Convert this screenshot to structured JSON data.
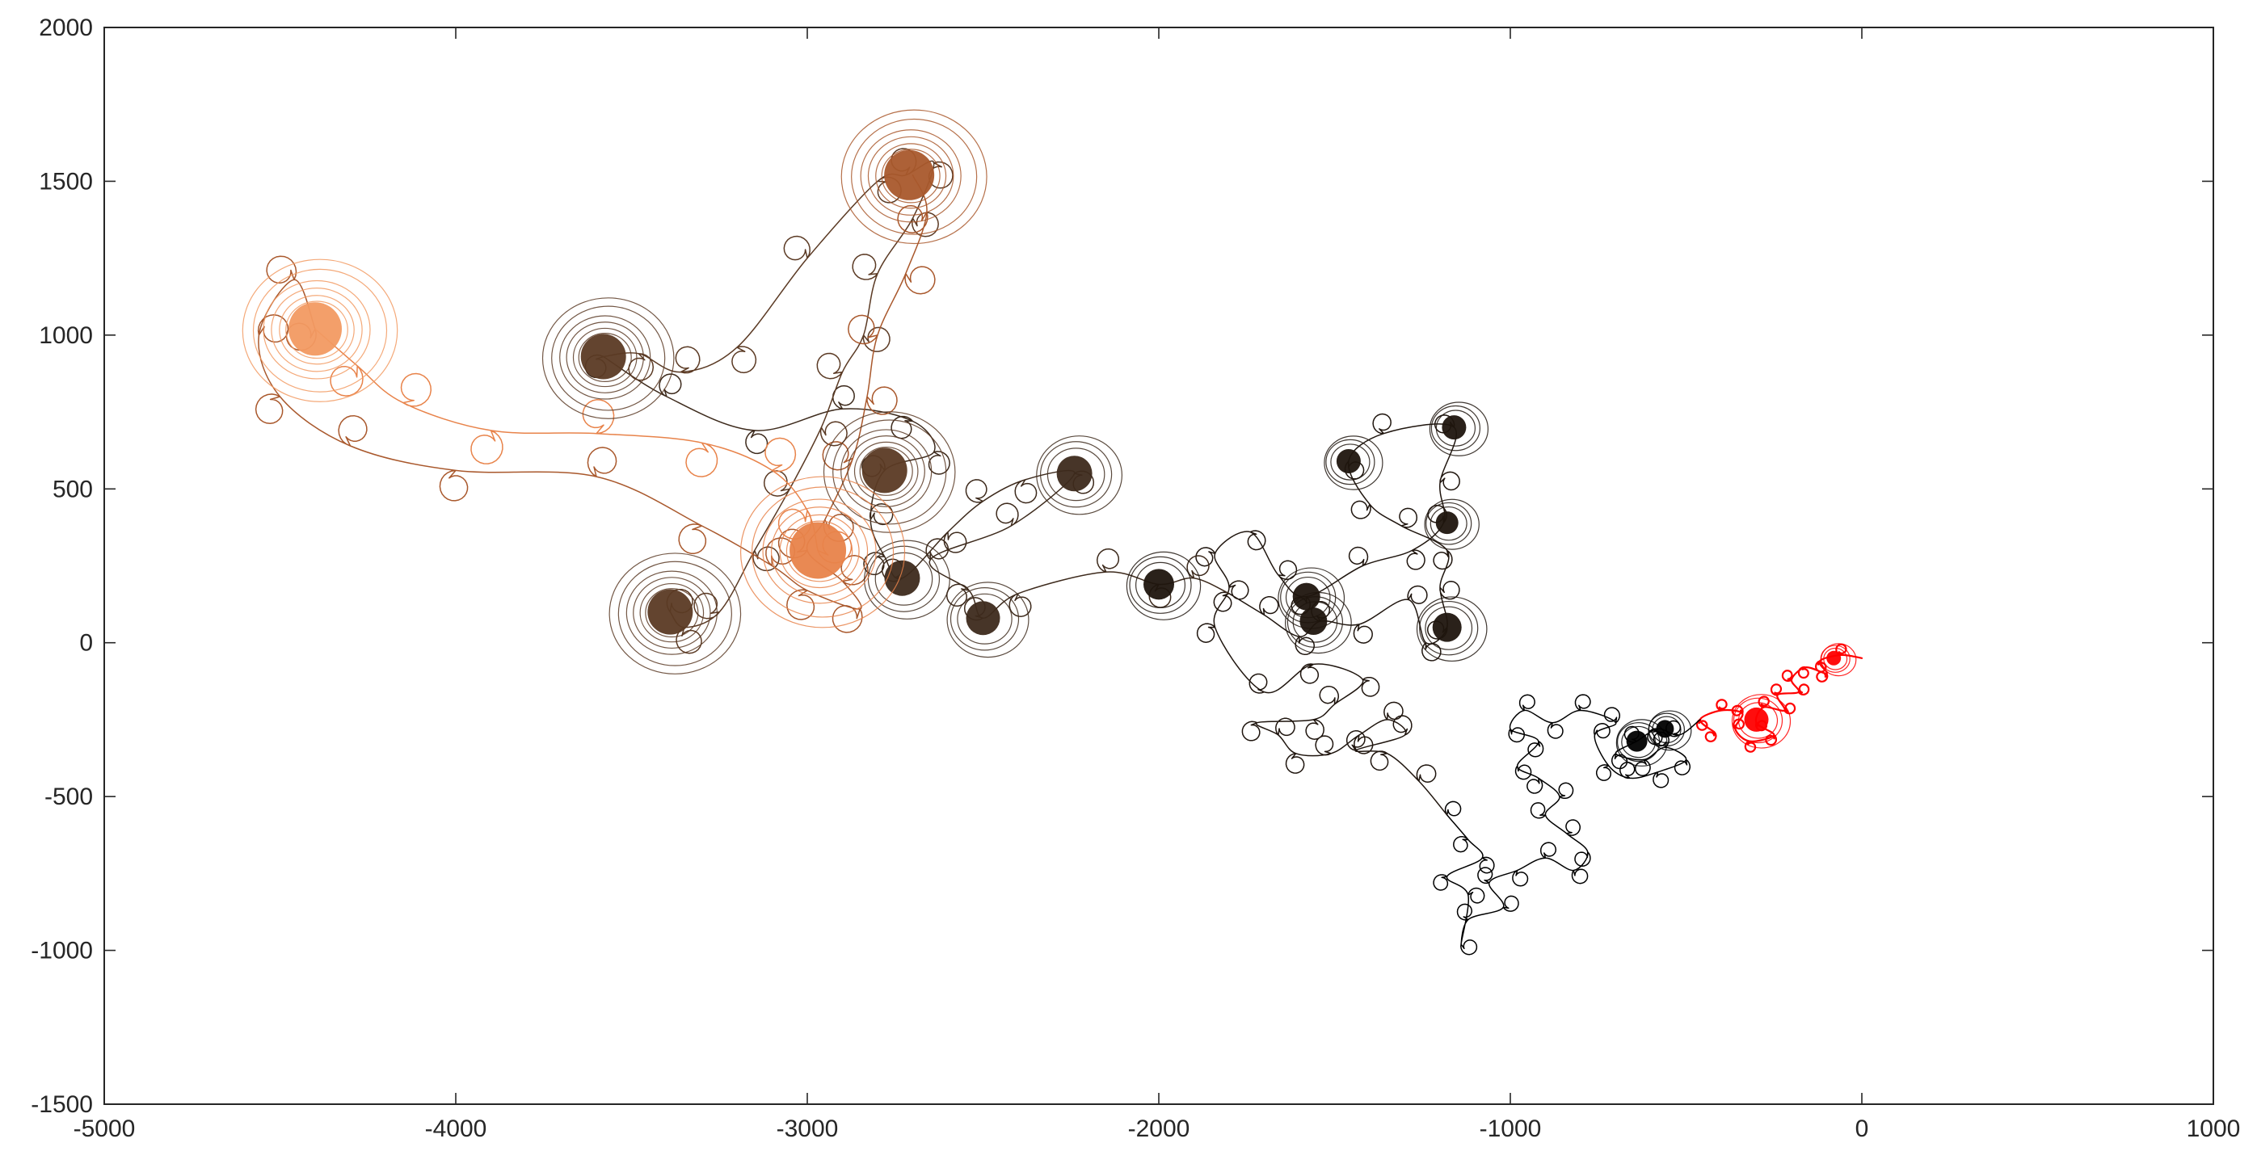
{
  "chart_data": {
    "type": "line",
    "title": "",
    "xlabel": "",
    "ylabel": "",
    "xlim": [
      -5000,
      1000
    ],
    "ylim": [
      -1500,
      2000
    ],
    "grid": false,
    "legend": "none",
    "x_ticks": [
      -5000,
      -4000,
      -3000,
      -2000,
      -1000,
      0,
      1000
    ],
    "y_ticks": [
      -1500,
      -1000,
      -500,
      0,
      500,
      1000,
      1500,
      2000
    ],
    "x_tick_labels": [
      "-5000",
      "-4000",
      "-3000",
      "-2000",
      "-1000",
      "0",
      "1000"
    ],
    "y_tick_labels": [
      "-1500",
      "-1000",
      "-500",
      "0",
      "500",
      "1000",
      "1500",
      "2000"
    ],
    "series": [
      {
        "color": "#ff0000",
        "spiral_radius": 12,
        "waypoints": [
          [
            0,
            -50
          ],
          [
            -60,
            -40
          ],
          [
            -120,
            -60
          ],
          [
            -100,
            -100
          ],
          [
            -160,
            -80
          ],
          [
            -200,
            -120
          ],
          [
            -180,
            -160
          ],
          [
            -240,
            -170
          ],
          [
            -220,
            -220
          ],
          [
            -280,
            -210
          ],
          [
            -300,
            -260
          ],
          [
            -250,
            -300
          ],
          [
            -320,
            -320
          ],
          [
            -360,
            -280
          ],
          [
            -340,
            -230
          ],
          [
            -400,
            -220
          ],
          [
            -460,
            -250
          ],
          [
            -420,
            -290
          ]
        ]
      },
      {
        "color": "#000000",
        "spiral_radius": 18,
        "waypoints": [
          [
            -460,
            -250
          ],
          [
            -520,
            -300
          ],
          [
            -580,
            -280
          ],
          [
            -640,
            -320
          ],
          [
            -700,
            -360
          ],
          [
            -620,
            -380
          ],
          [
            -560,
            -340
          ],
          [
            -500,
            -380
          ],
          [
            -580,
            -420
          ],
          [
            -660,
            -440
          ],
          [
            -720,
            -400
          ],
          [
            -760,
            -300
          ],
          [
            -700,
            -260
          ],
          [
            -800,
            -220
          ],
          [
            -880,
            -260
          ],
          [
            -960,
            -220
          ],
          [
            -1000,
            -280
          ],
          [
            -920,
            -320
          ],
          [
            -980,
            -400
          ],
          [
            -920,
            -440
          ],
          [
            -860,
            -500
          ],
          [
            -900,
            -560
          ],
          [
            -840,
            -620
          ],
          [
            -780,
            -680
          ],
          [
            -820,
            -740
          ],
          [
            -900,
            -700
          ],
          [
            -980,
            -740
          ],
          [
            -1060,
            -780
          ],
          [
            -1020,
            -860
          ],
          [
            -1120,
            -900
          ],
          [
            -1140,
            -980
          ],
          [
            -1120,
            -820
          ],
          [
            -1180,
            -760
          ],
          [
            -1080,
            -700
          ],
          [
            -1120,
            -640
          ],
          [
            -1180,
            -560
          ]
        ]
      },
      {
        "color": "#1f150e",
        "spiral_radius": 22,
        "waypoints": [
          [
            -1180,
            -560
          ],
          [
            -1260,
            -450
          ],
          [
            -1350,
            -360
          ],
          [
            -1440,
            -350
          ],
          [
            -1300,
            -300
          ],
          [
            -1350,
            -250
          ],
          [
            -1430,
            -300
          ],
          [
            -1510,
            -360
          ],
          [
            -1610,
            -360
          ],
          [
            -1660,
            -300
          ],
          [
            -1720,
            -260
          ],
          [
            -1560,
            -250
          ],
          [
            -1500,
            -200
          ],
          [
            -1420,
            -120
          ],
          [
            -1560,
            -70
          ],
          [
            -1700,
            -160
          ],
          [
            -1840,
            50
          ],
          [
            -1800,
            180
          ],
          [
            -1840,
            290
          ],
          [
            -1740,
            360
          ],
          [
            -1660,
            220
          ],
          [
            -1580,
            150
          ],
          [
            -1420,
            250
          ],
          [
            -1280,
            300
          ],
          [
            -1190,
            390
          ],
          [
            -1200,
            520
          ],
          [
            -1160,
            700
          ],
          [
            -1360,
            680
          ],
          [
            -1460,
            590
          ],
          [
            -1400,
            450
          ],
          [
            -1310,
            380
          ],
          [
            -1180,
            300
          ],
          [
            -1200,
            180
          ],
          [
            -1180,
            50
          ],
          [
            -1240,
            0
          ],
          [
            -1290,
            140
          ],
          [
            -1430,
            60
          ],
          [
            -1540,
            70
          ],
          [
            -1600,
            20
          ],
          [
            -1700,
            90
          ],
          [
            -1800,
            160
          ]
        ]
      },
      {
        "color": "#3d2a1c",
        "spiral_radius": 26,
        "waypoints": [
          [
            -1800,
            160
          ],
          [
            -1900,
            210
          ],
          [
            -2000,
            190
          ],
          [
            -2150,
            230
          ],
          [
            -2400,
            160
          ],
          [
            -2500,
            80
          ],
          [
            -2540,
            170
          ],
          [
            -2650,
            270
          ],
          [
            -2420,
            380
          ],
          [
            -2240,
            550
          ],
          [
            -2380,
            530
          ],
          [
            -2500,
            460
          ],
          [
            -2600,
            360
          ],
          [
            -2730,
            210
          ],
          [
            -2780,
            280
          ],
          [
            -2820,
            400
          ],
          [
            -2780,
            560
          ],
          [
            -2640,
            620
          ],
          [
            -2700,
            720
          ],
          [
            -2900,
            760
          ],
          [
            -3150,
            690
          ],
          [
            -3400,
            800
          ],
          [
            -3580,
            930
          ]
        ]
      },
      {
        "color": "#5b3a24",
        "spiral_radius": 30,
        "waypoints": [
          [
            -3580,
            930
          ],
          [
            -3480,
            940
          ],
          [
            -3360,
            880
          ],
          [
            -3200,
            960
          ],
          [
            -3000,
            1250
          ],
          [
            -2800,
            1500
          ],
          [
            -2720,
            1520
          ],
          [
            -2640,
            1560
          ],
          [
            -2700,
            1380
          ],
          [
            -2800,
            1200
          ],
          [
            -2840,
            1000
          ],
          [
            -2900,
            880
          ],
          [
            -2960,
            700
          ],
          [
            -3050,
            500
          ],
          [
            -3150,
            300
          ],
          [
            -3250,
            100
          ],
          [
            -3350,
            50
          ],
          [
            -3390,
            100
          ]
        ]
      },
      {
        "color": "#a9582c",
        "spiral_radius": 34,
        "waypoints": [
          [
            -2700,
            1520
          ],
          [
            -2660,
            1400
          ],
          [
            -2720,
            1200
          ],
          [
            -2800,
            1000
          ],
          [
            -2830,
            800
          ],
          [
            -2870,
            600
          ],
          [
            -2950,
            400
          ],
          [
            -3000,
            300
          ],
          [
            -2900,
            200
          ],
          [
            -2850,
            110
          ],
          [
            -3000,
            170
          ],
          [
            -3100,
            250
          ],
          [
            -3300,
            380
          ],
          [
            -3600,
            540
          ],
          [
            -4000,
            560
          ],
          [
            -4300,
            640
          ],
          [
            -4500,
            800
          ],
          [
            -4560,
            1000
          ],
          [
            -4460,
            1180
          ],
          [
            -4400,
            1020
          ]
        ]
      },
      {
        "color": "#e8834a",
        "spiral_radius": 38,
        "waypoints": [
          [
            -4400,
            1020
          ],
          [
            -4280,
            900
          ],
          [
            -4150,
            780
          ],
          [
            -3900,
            690
          ],
          [
            -3600,
            680
          ],
          [
            -3300,
            650
          ],
          [
            -3100,
            560
          ],
          [
            -3000,
            430
          ],
          [
            -2970,
            300
          ]
        ]
      }
    ],
    "clusters": [
      {
        "color": "#ff0000",
        "x": -80,
        "y": -50,
        "r": 18
      },
      {
        "color": "#ff0000",
        "x": -300,
        "y": -250,
        "r": 30
      },
      {
        "color": "#000000",
        "x": -640,
        "y": -320,
        "r": 26
      },
      {
        "color": "#000000",
        "x": -560,
        "y": -280,
        "r": 22
      },
      {
        "color": "#1f150e",
        "x": -1160,
        "y": 700,
        "r": 30
      },
      {
        "color": "#1f150e",
        "x": -1460,
        "y": 590,
        "r": 30
      },
      {
        "color": "#1f150e",
        "x": -1180,
        "y": 390,
        "r": 28
      },
      {
        "color": "#1f150e",
        "x": -1580,
        "y": 150,
        "r": 34
      },
      {
        "color": "#1f150e",
        "x": -1560,
        "y": 70,
        "r": 34
      },
      {
        "color": "#1f150e",
        "x": -1180,
        "y": 50,
        "r": 36
      },
      {
        "color": "#1f150e",
        "x": -2000,
        "y": 190,
        "r": 38
      },
      {
        "color": "#3d2a1c",
        "x": -2500,
        "y": 80,
        "r": 42
      },
      {
        "color": "#3d2a1c",
        "x": -2240,
        "y": 550,
        "r": 44
      },
      {
        "color": "#3d2a1c",
        "x": -2730,
        "y": 210,
        "r": 44
      },
      {
        "color": "#5b3a24",
        "x": -2780,
        "y": 560,
        "r": 56
      },
      {
        "color": "#5b3a24",
        "x": -3390,
        "y": 100,
        "r": 56
      },
      {
        "color": "#5b3a24",
        "x": -3580,
        "y": 930,
        "r": 56
      },
      {
        "color": "#a9582c",
        "x": -2710,
        "y": 1520,
        "r": 62
      },
      {
        "color": "#e8834a",
        "x": -2970,
        "y": 300,
        "r": 70
      },
      {
        "color": "#f29a62",
        "x": -4400,
        "y": 1020,
        "r": 66
      }
    ]
  }
}
